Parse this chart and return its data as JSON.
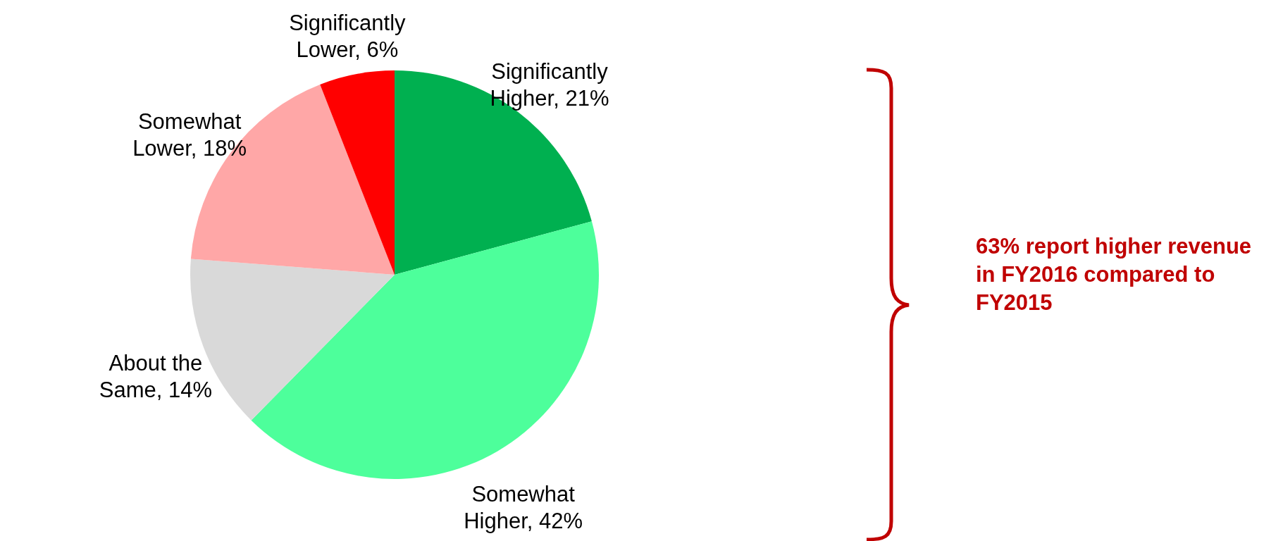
{
  "chart_data": {
    "type": "pie",
    "categories": [
      "Significantly Higher",
      "Somewhat Higher",
      "About the Same",
      "Somewhat Lower",
      "Significantly Lower"
    ],
    "values": [
      21,
      42,
      14,
      18,
      6
    ],
    "colors": [
      "#00b050",
      "#4dff9b",
      "#d9d9d9",
      "#ffa7a7",
      "#ff0000"
    ],
    "value_labels": [
      "21%",
      "42%",
      "14%",
      "18%",
      "6%"
    ],
    "annotations": [
      "63% report higher revenue in FY2016 compared to FY2015"
    ]
  }
}
